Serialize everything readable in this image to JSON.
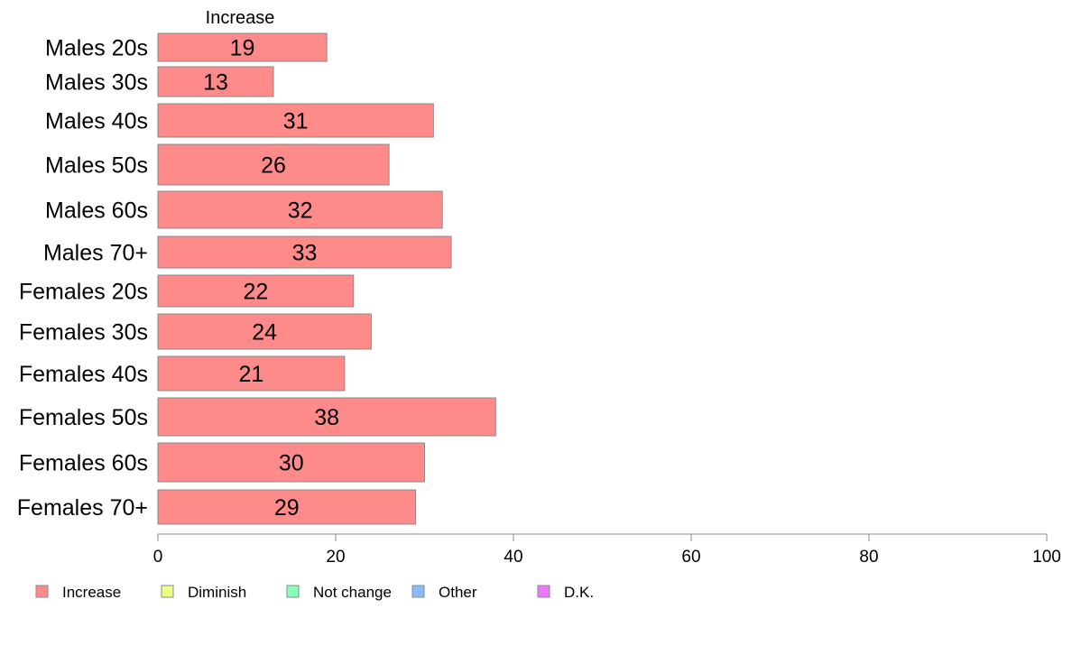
{
  "chart_data": {
    "type": "bar",
    "orientation": "horizontal",
    "header": "Increase",
    "categories": [
      "Males 20s",
      "Males 30s",
      "Males 40s",
      "Males 50s",
      "Males 60s",
      "Males 70+",
      "Females 20s",
      "Females 30s",
      "Females 40s",
      "Females 50s",
      "Females 60s",
      "Females 70+"
    ],
    "series": [
      {
        "name": "Increase",
        "values": [
          19,
          13,
          31,
          26,
          32,
          33,
          22,
          24,
          21,
          38,
          30,
          29
        ],
        "labels": [
          "19",
          "13",
          "31",
          "26",
          "32",
          "33",
          "22",
          "24",
          "21",
          "38",
          "30",
          "29"
        ]
      }
    ],
    "xlim": [
      0,
      100
    ],
    "xticks": [
      "0",
      "20",
      "40",
      "60",
      "80",
      "100"
    ],
    "grid": false,
    "legend_position": "bottom",
    "legend": [
      {
        "label": "Increase",
        "color": "#ff8a8a"
      },
      {
        "label": "Diminish",
        "color": "#eeff88"
      },
      {
        "label": "Not change",
        "color": "#88ffbb"
      },
      {
        "label": "Other",
        "color": "#88bbff"
      },
      {
        "label": "D.K.",
        "color": "#ee77ff"
      }
    ]
  }
}
